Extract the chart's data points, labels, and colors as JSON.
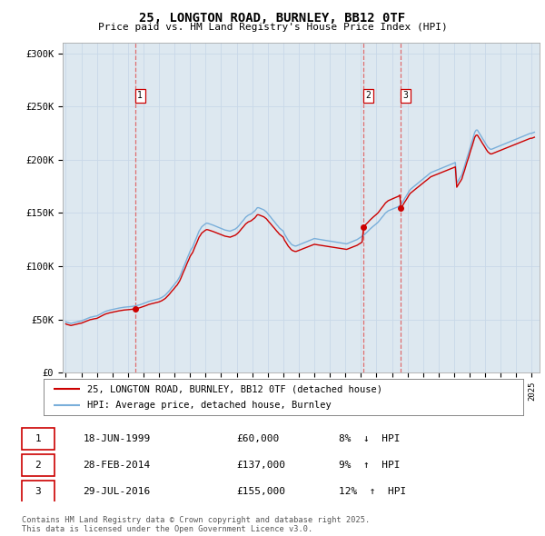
{
  "title": "25, LONGTON ROAD, BURNLEY, BB12 0TF",
  "subtitle": "Price paid vs. HM Land Registry's House Price Index (HPI)",
  "ylabel_ticks": [
    "£0",
    "£50K",
    "£100K",
    "£150K",
    "£200K",
    "£250K",
    "£300K"
  ],
  "ytick_values": [
    0,
    50000,
    100000,
    150000,
    200000,
    250000,
    300000
  ],
  "ylim": [
    0,
    310000
  ],
  "xlim_start": 1994.8,
  "xlim_end": 2025.5,
  "sale_color": "#cc0000",
  "hpi_color": "#7aafda",
  "vline_color": "#e06060",
  "grid_color": "#c8d8e8",
  "bg_color": "#dde8f0",
  "legend_label_sale": "25, LONGTON ROAD, BURNLEY, BB12 0TF (detached house)",
  "legend_label_hpi": "HPI: Average price, detached house, Burnley",
  "transactions": [
    {
      "num": 1,
      "date_str": "18-JUN-1999",
      "price": 60000,
      "pct": "8%",
      "dir": "↓",
      "year": 1999.46
    },
    {
      "num": 2,
      "date_str": "28-FEB-2014",
      "price": 137000,
      "pct": "9%",
      "dir": "↑",
      "year": 2014.16
    },
    {
      "num": 3,
      "date_str": "29-JUL-2016",
      "price": 155000,
      "pct": "12%",
      "dir": "↑",
      "year": 2016.57
    }
  ],
  "footer": "Contains HM Land Registry data © Crown copyright and database right 2025.\nThis data is licensed under the Open Government Licence v3.0.",
  "hpi_data": {
    "years": [
      1995.0,
      1995.08,
      1995.17,
      1995.25,
      1995.33,
      1995.42,
      1995.5,
      1995.58,
      1995.67,
      1995.75,
      1995.83,
      1995.92,
      1996.0,
      1996.08,
      1996.17,
      1996.25,
      1996.33,
      1996.42,
      1996.5,
      1996.58,
      1996.67,
      1996.75,
      1996.83,
      1996.92,
      1997.0,
      1997.08,
      1997.17,
      1997.25,
      1997.33,
      1997.42,
      1997.5,
      1997.58,
      1997.67,
      1997.75,
      1997.83,
      1997.92,
      1998.0,
      1998.08,
      1998.17,
      1998.25,
      1998.33,
      1998.42,
      1998.5,
      1998.58,
      1998.67,
      1998.75,
      1998.83,
      1998.92,
      1999.0,
      1999.08,
      1999.17,
      1999.25,
      1999.33,
      1999.42,
      1999.5,
      1999.58,
      1999.67,
      1999.75,
      1999.83,
      1999.92,
      2000.0,
      2000.08,
      2000.17,
      2000.25,
      2000.33,
      2000.42,
      2000.5,
      2000.58,
      2000.67,
      2000.75,
      2000.83,
      2000.92,
      2001.0,
      2001.08,
      2001.17,
      2001.25,
      2001.33,
      2001.42,
      2001.5,
      2001.58,
      2001.67,
      2001.75,
      2001.83,
      2001.92,
      2002.0,
      2002.08,
      2002.17,
      2002.25,
      2002.33,
      2002.42,
      2002.5,
      2002.58,
      2002.67,
      2002.75,
      2002.83,
      2002.92,
      2003.0,
      2003.08,
      2003.17,
      2003.25,
      2003.33,
      2003.42,
      2003.5,
      2003.58,
      2003.67,
      2003.75,
      2003.83,
      2003.92,
      2004.0,
      2004.08,
      2004.17,
      2004.25,
      2004.33,
      2004.42,
      2004.5,
      2004.58,
      2004.67,
      2004.75,
      2004.83,
      2004.92,
      2005.0,
      2005.08,
      2005.17,
      2005.25,
      2005.33,
      2005.42,
      2005.5,
      2005.58,
      2005.67,
      2005.75,
      2005.83,
      2005.92,
      2006.0,
      2006.08,
      2006.17,
      2006.25,
      2006.33,
      2006.42,
      2006.5,
      2006.58,
      2006.67,
      2006.75,
      2006.83,
      2006.92,
      2007.0,
      2007.08,
      2007.17,
      2007.25,
      2007.33,
      2007.42,
      2007.5,
      2007.58,
      2007.67,
      2007.75,
      2007.83,
      2007.92,
      2008.0,
      2008.08,
      2008.17,
      2008.25,
      2008.33,
      2008.42,
      2008.5,
      2008.58,
      2008.67,
      2008.75,
      2008.83,
      2008.92,
      2009.0,
      2009.08,
      2009.17,
      2009.25,
      2009.33,
      2009.42,
      2009.5,
      2009.58,
      2009.67,
      2009.75,
      2009.83,
      2009.92,
      2010.0,
      2010.08,
      2010.17,
      2010.25,
      2010.33,
      2010.42,
      2010.5,
      2010.58,
      2010.67,
      2010.75,
      2010.83,
      2010.92,
      2011.0,
      2011.08,
      2011.17,
      2011.25,
      2011.33,
      2011.42,
      2011.5,
      2011.58,
      2011.67,
      2011.75,
      2011.83,
      2011.92,
      2012.0,
      2012.08,
      2012.17,
      2012.25,
      2012.33,
      2012.42,
      2012.5,
      2012.58,
      2012.67,
      2012.75,
      2012.83,
      2012.92,
      2013.0,
      2013.08,
      2013.17,
      2013.25,
      2013.33,
      2013.42,
      2013.5,
      2013.58,
      2013.67,
      2013.75,
      2013.83,
      2013.92,
      2014.0,
      2014.08,
      2014.17,
      2014.25,
      2014.33,
      2014.42,
      2014.5,
      2014.58,
      2014.67,
      2014.75,
      2014.83,
      2014.92,
      2015.0,
      2015.08,
      2015.17,
      2015.25,
      2015.33,
      2015.42,
      2015.5,
      2015.58,
      2015.67,
      2015.75,
      2015.83,
      2015.92,
      2016.0,
      2016.08,
      2016.17,
      2016.25,
      2016.33,
      2016.42,
      2016.5,
      2016.58,
      2016.67,
      2016.75,
      2016.83,
      2016.92,
      2017.0,
      2017.08,
      2017.17,
      2017.25,
      2017.33,
      2017.42,
      2017.5,
      2017.58,
      2017.67,
      2017.75,
      2017.83,
      2017.92,
      2018.0,
      2018.08,
      2018.17,
      2018.25,
      2018.33,
      2018.42,
      2018.5,
      2018.58,
      2018.67,
      2018.75,
      2018.83,
      2018.92,
      2019.0,
      2019.08,
      2019.17,
      2019.25,
      2019.33,
      2019.42,
      2019.5,
      2019.58,
      2019.67,
      2019.75,
      2019.83,
      2019.92,
      2020.0,
      2020.08,
      2020.17,
      2020.25,
      2020.33,
      2020.42,
      2020.5,
      2020.58,
      2020.67,
      2020.75,
      2020.83,
      2020.92,
      2021.0,
      2021.08,
      2021.17,
      2021.25,
      2021.33,
      2021.42,
      2021.5,
      2021.58,
      2021.67,
      2021.75,
      2021.83,
      2021.92,
      2022.0,
      2022.08,
      2022.17,
      2022.25,
      2022.33,
      2022.42,
      2022.5,
      2022.58,
      2022.67,
      2022.75,
      2022.83,
      2022.92,
      2023.0,
      2023.08,
      2023.17,
      2023.25,
      2023.33,
      2023.42,
      2023.5,
      2023.58,
      2023.67,
      2023.75,
      2023.83,
      2023.92,
      2024.0,
      2024.08,
      2024.17,
      2024.25,
      2024.33,
      2024.42,
      2024.5,
      2024.58,
      2024.67,
      2024.75,
      2024.83,
      2024.92,
      2025.0,
      2025.08,
      2025.17
    ],
    "values": [
      47800,
      47200,
      46900,
      46500,
      46200,
      46500,
      46800,
      47100,
      47400,
      47700,
      48000,
      48300,
      48500,
      49000,
      49500,
      50000,
      50500,
      51000,
      51500,
      52000,
      52200,
      52500,
      52800,
      53000,
      53200,
      53800,
      54500,
      55200,
      55800,
      56500,
      57100,
      57600,
      58000,
      58400,
      58700,
      59000,
      59200,
      59500,
      59800,
      60100,
      60400,
      60600,
      60800,
      61000,
      61200,
      61400,
      61500,
      61700,
      61800,
      61900,
      62000,
      62100,
      62300,
      62600,
      62800,
      63000,
      63300,
      63600,
      64000,
      64400,
      64800,
      65300,
      65800,
      66300,
      66800,
      67200,
      67500,
      67800,
      68100,
      68400,
      68700,
      69000,
      69400,
      69900,
      70500,
      71200,
      72000,
      73000,
      74200,
      75500,
      77000,
      78500,
      80000,
      81500,
      83000,
      84500,
      86000,
      88000,
      90000,
      93000,
      96000,
      99000,
      102000,
      105000,
      108000,
      111000,
      114000,
      116000,
      118000,
      121000,
      124000,
      127000,
      130000,
      133000,
      135000,
      137000,
      138000,
      139000,
      140000,
      140500,
      140200,
      139800,
      139500,
      139000,
      138500,
      138000,
      137500,
      137000,
      136500,
      136000,
      135500,
      135000,
      134500,
      134000,
      133800,
      133500,
      133200,
      133000,
      133500,
      134000,
      134500,
      135000,
      136000,
      137000,
      138500,
      140000,
      141500,
      143000,
      144500,
      146000,
      147000,
      148000,
      148500,
      149000,
      150000,
      151000,
      152000,
      153500,
      155000,
      155000,
      154500,
      154000,
      153500,
      153000,
      152000,
      151000,
      149500,
      148000,
      146500,
      145000,
      143500,
      142000,
      140500,
      139000,
      137500,
      136000,
      135000,
      134000,
      133000,
      130000,
      128000,
      126000,
      124000,
      122500,
      121000,
      120000,
      119500,
      119000,
      119000,
      119500,
      120000,
      120500,
      121000,
      121500,
      122000,
      122500,
      123000,
      123500,
      124000,
      124500,
      125000,
      125500,
      126000,
      125800,
      125600,
      125400,
      125200,
      125000,
      124800,
      124600,
      124400,
      124200,
      124000,
      123800,
      123600,
      123400,
      123200,
      123000,
      122800,
      122600,
      122400,
      122200,
      122000,
      121800,
      121600,
      121400,
      121200,
      121000,
      121500,
      122000,
      122500,
      123000,
      123500,
      124000,
      124500,
      125000,
      125800,
      126600,
      127400,
      128200,
      129000,
      130000,
      131200,
      132400,
      133600,
      134800,
      136000,
      137000,
      138000,
      139000,
      140000,
      141000,
      142500,
      144000,
      145500,
      147000,
      148500,
      150000,
      151000,
      152000,
      152500,
      153000,
      153500,
      154000,
      154500,
      155000,
      155500,
      156000,
      157000,
      158500,
      160000,
      162000,
      164000,
      166000,
      168000,
      170000,
      172000,
      173000,
      174000,
      175000,
      176000,
      177000,
      178000,
      179000,
      180000,
      181000,
      182000,
      183000,
      184000,
      185000,
      186000,
      187000,
      188000,
      188500,
      189000,
      189500,
      190000,
      190500,
      191000,
      191500,
      192000,
      192500,
      193000,
      193500,
      194000,
      194500,
      195000,
      195500,
      196000,
      196500,
      197000,
      197500,
      178000,
      180000,
      182000,
      184000,
      186000,
      190000,
      194000,
      198000,
      202000,
      206000,
      210000,
      214000,
      218000,
      222000,
      226000,
      228000,
      228000,
      226000,
      224000,
      222000,
      220000,
      218000,
      216000,
      214000,
      212000,
      211000,
      210000,
      210000,
      210500,
      211000,
      211500,
      212000,
      212500,
      213000,
      213500,
      214000,
      214500,
      215000,
      215500,
      216000,
      216500,
      217000,
      217500,
      218000,
      218500,
      219000,
      219500,
      220000,
      220500,
      221000,
      221500,
      222000,
      222500,
      223000,
      223500,
      224000,
      224500,
      225000,
      225000,
      225500,
      226000
    ]
  }
}
